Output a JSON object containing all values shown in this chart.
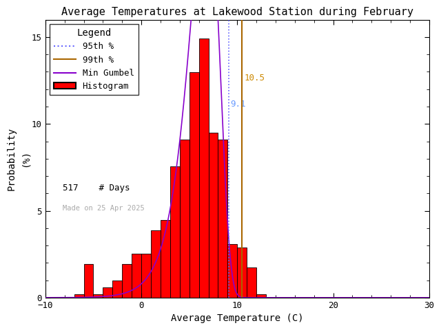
{
  "title": "Average Temperatures at Lakewood Station during February",
  "xlabel": "Average Temperature (C)",
  "ylabel": "Probability\n(%)",
  "xlim": [
    -10,
    30
  ],
  "ylim": [
    0,
    16
  ],
  "yticks": [
    0,
    5,
    10,
    15
  ],
  "xticks": [
    -10,
    0,
    10,
    20,
    30
  ],
  "bar_left_edges": [
    -7,
    -6,
    -5,
    -4,
    -3,
    -2,
    -1,
    0,
    1,
    2,
    3,
    4,
    5,
    6,
    7,
    8,
    9,
    10,
    11,
    12,
    13,
    14
  ],
  "bar_heights": [
    0.19,
    1.93,
    0.19,
    0.58,
    0.97,
    1.93,
    2.51,
    2.51,
    3.87,
    4.45,
    7.54,
    9.09,
    12.96,
    14.9,
    9.48,
    9.09,
    3.1,
    2.9,
    1.74,
    0.19,
    0.0,
    0.0
  ],
  "bar_color": "#ff0000",
  "bar_edgecolor": "#000000",
  "gumbel_mu": 6.8,
  "gumbel_beta": 1.55,
  "percentile_95": 9.1,
  "percentile_99": 10.5,
  "n_days": 517,
  "made_on": "Made on 25 Apr 2025",
  "line_95_color": "#6666ff",
  "line_99_color": "#aa6600",
  "gumbel_color": "#8800cc",
  "annotation_95_color": "#6699ff",
  "annotation_99_color": "#cc8800",
  "background_color": "#ffffff",
  "title_fontsize": 11,
  "axis_fontsize": 10,
  "tick_fontsize": 9,
  "legend_fontsize": 9
}
